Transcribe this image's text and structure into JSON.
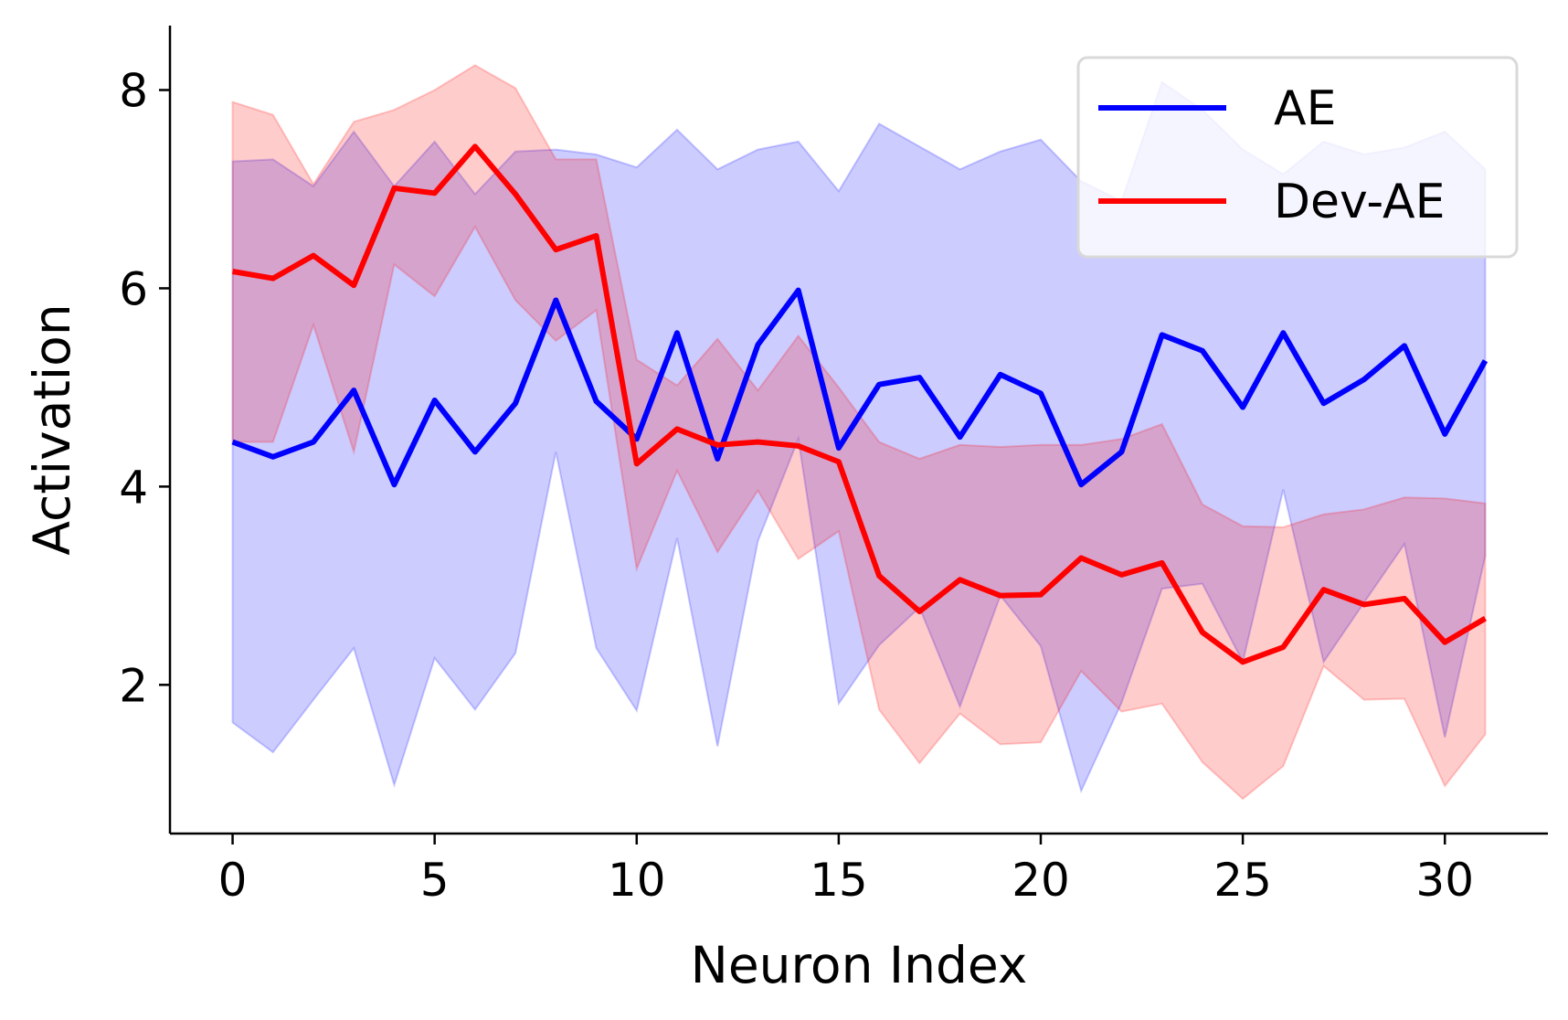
{
  "chart_data": {
    "type": "line",
    "title": "",
    "xlabel": "Neuron Index",
    "ylabel": "Activation",
    "xlim": [
      -1.55,
      32.55
    ],
    "ylim": [
      0.5,
      8.65
    ],
    "xticks": [
      0,
      5,
      10,
      15,
      20,
      25,
      30
    ],
    "yticks": [
      2,
      4,
      6,
      8
    ],
    "grid": false,
    "legend": {
      "position": "top-right",
      "entries": [
        "AE",
        "Dev-AE"
      ]
    },
    "x": [
      0,
      1,
      2,
      3,
      4,
      5,
      6,
      7,
      8,
      9,
      10,
      11,
      12,
      13,
      14,
      15,
      16,
      17,
      18,
      19,
      20,
      21,
      22,
      23,
      24,
      25,
      26,
      27,
      28,
      29,
      30,
      31
    ],
    "series": [
      {
        "name": "AE",
        "color": "#0000ff",
        "values": [
          4.45,
          4.3,
          4.45,
          4.97,
          4.02,
          4.87,
          4.35,
          4.84,
          5.88,
          4.86,
          4.48,
          5.55,
          4.28,
          5.43,
          5.98,
          4.39,
          5.03,
          5.1,
          4.5,
          5.13,
          4.94,
          4.02,
          4.35,
          5.53,
          5.37,
          4.8,
          5.55,
          4.84,
          5.08,
          5.42,
          4.53,
          5.27
        ],
        "upper": [
          7.28,
          7.3,
          7.03,
          7.58,
          7.03,
          7.48,
          6.95,
          7.38,
          7.4,
          7.35,
          7.22,
          7.6,
          7.2,
          7.4,
          7.48,
          6.98,
          7.66,
          7.43,
          7.2,
          7.38,
          7.5,
          7.08,
          6.88,
          8.08,
          7.8,
          7.4,
          7.15,
          7.48,
          7.35,
          7.42,
          7.58,
          7.2
        ],
        "lower": [
          1.62,
          1.32,
          1.85,
          2.37,
          0.99,
          2.27,
          1.75,
          2.32,
          4.35,
          2.37,
          1.74,
          3.48,
          1.38,
          3.45,
          4.48,
          1.81,
          2.4,
          2.78,
          1.78,
          2.9,
          2.39,
          0.93,
          1.82,
          2.97,
          3.02,
          2.23,
          3.97,
          2.23,
          2.83,
          3.42,
          1.47,
          3.3
        ]
      },
      {
        "name": "Dev-AE",
        "color": "#ff0000",
        "values": [
          6.17,
          6.1,
          6.33,
          6.03,
          7.01,
          6.96,
          7.43,
          6.95,
          6.39,
          6.53,
          4.23,
          4.58,
          4.42,
          4.45,
          4.41,
          4.25,
          3.1,
          2.74,
          3.06,
          2.9,
          2.91,
          3.28,
          3.11,
          3.23,
          2.53,
          2.23,
          2.38,
          2.96,
          2.81,
          2.87,
          2.43,
          2.67
        ],
        "upper": [
          7.88,
          7.75,
          7.05,
          7.68,
          7.8,
          8.0,
          8.25,
          8.02,
          7.3,
          7.3,
          5.28,
          5.02,
          5.49,
          4.97,
          5.52,
          5.0,
          4.45,
          4.28,
          4.42,
          4.4,
          4.42,
          4.42,
          4.48,
          4.63,
          3.82,
          3.6,
          3.59,
          3.72,
          3.77,
          3.89,
          3.88,
          3.83
        ],
        "lower": [
          4.45,
          4.45,
          5.63,
          4.35,
          6.24,
          5.92,
          6.62,
          5.88,
          5.47,
          5.78,
          3.17,
          4.16,
          3.34,
          3.96,
          3.27,
          3.55,
          1.75,
          1.21,
          1.71,
          1.4,
          1.42,
          2.14,
          1.73,
          1.81,
          1.22,
          0.85,
          1.18,
          2.19,
          1.85,
          1.86,
          0.98,
          1.5
        ]
      }
    ]
  }
}
